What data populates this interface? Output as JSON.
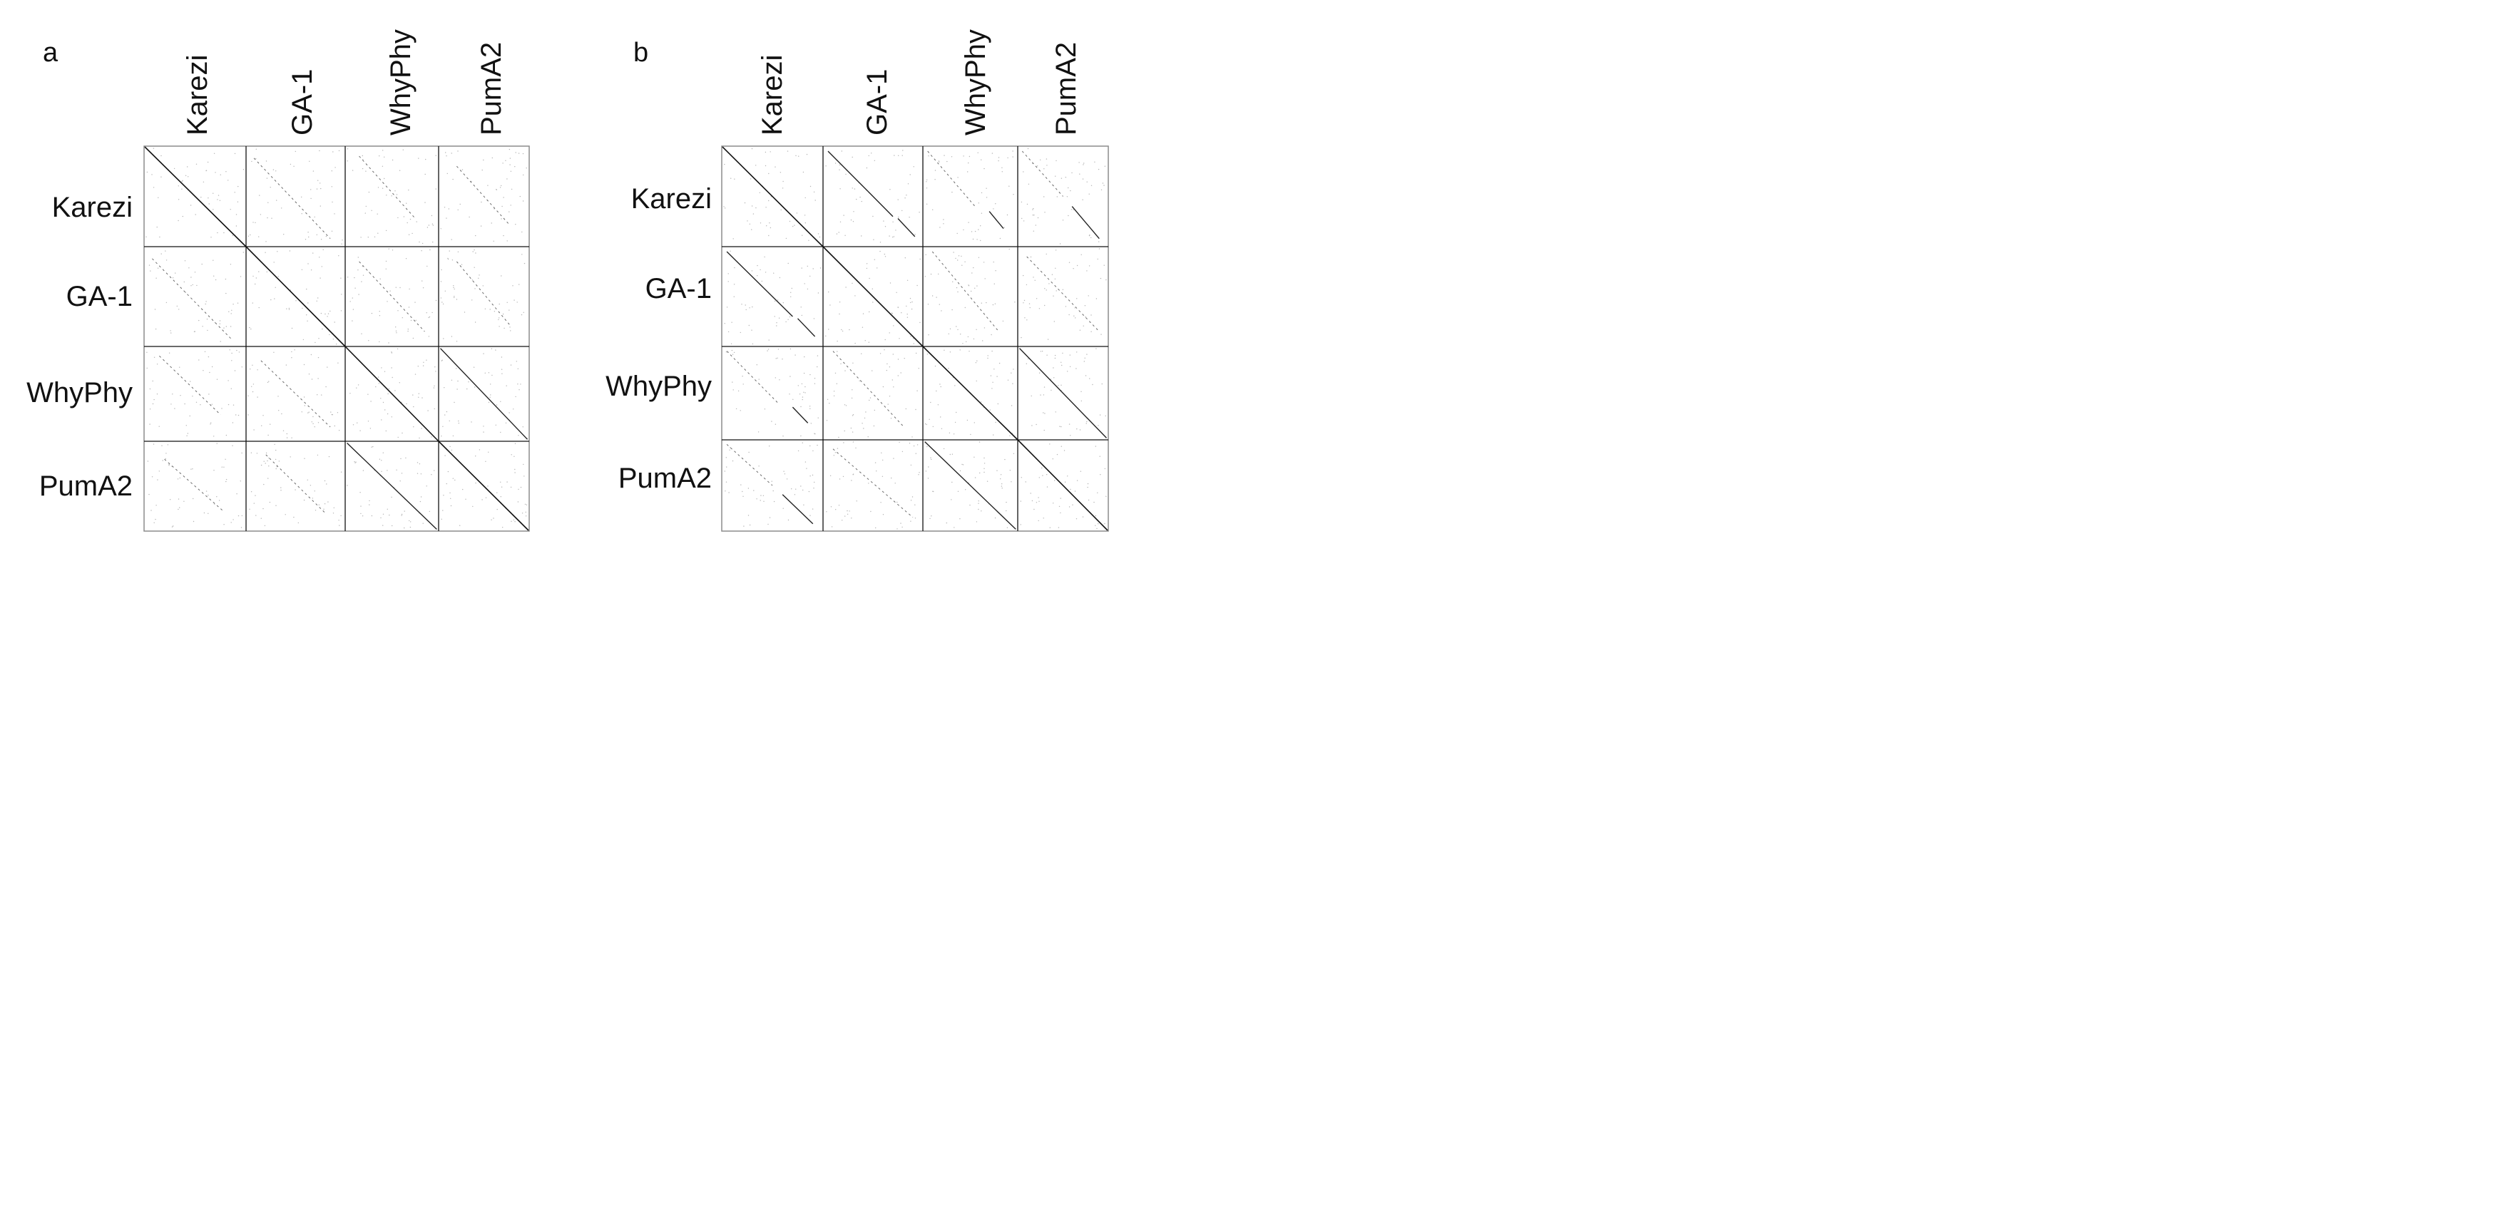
{
  "panels": [
    {
      "letter": "a",
      "genomes": [
        "Karezi",
        "GA-1",
        "WhyPhy",
        "PumA2"
      ]
    },
    {
      "letter": "b",
      "genomes": [
        "Karezi",
        "GA-1",
        "WhyPhy",
        "PumA2"
      ]
    }
  ],
  "colors": {
    "grid": "#8c8c8c",
    "block_border": "#111111",
    "match": "#222222",
    "faint_match": "#6a6a6a",
    "noise": "#b4b4b4"
  }
}
